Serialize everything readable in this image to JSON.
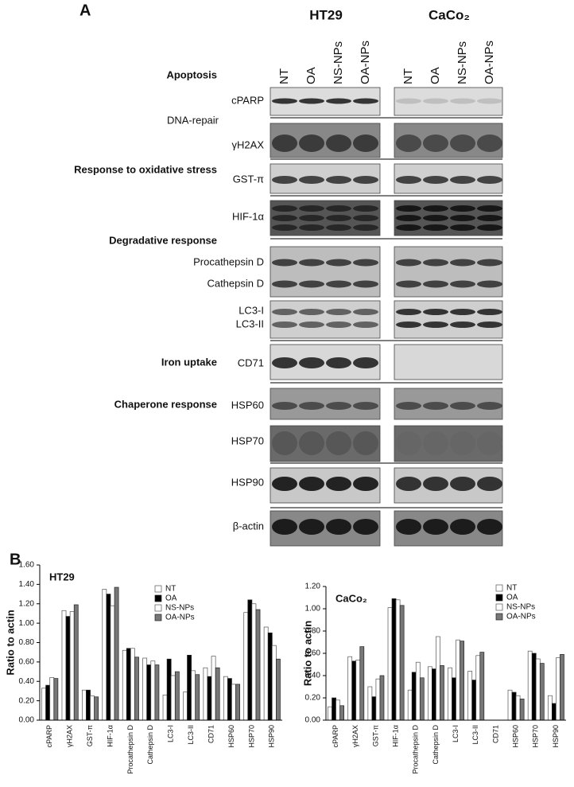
{
  "panel_a": {
    "label": "A",
    "cell_lines": [
      "HT29",
      "CaCo₂"
    ],
    "lanes": [
      "NT",
      "OA",
      "NS-NPs",
      "OA-NPs"
    ],
    "categories": [
      "Apoptosis",
      "DNA-repair",
      "Response to oxidative stress",
      "Degradative response",
      "Iron uptake",
      "Chaperone response"
    ],
    "blot_labels": [
      "cPARP",
      "γH2AX",
      "GST-π",
      "HIF-1α",
      "Procathepsin D",
      "Cathepsin D",
      "LC3-I",
      "LC3-II",
      "CD71",
      "HSP60",
      "HSP70",
      "HSP90",
      "β-actin"
    ]
  },
  "panel_b_label": "B",
  "chart_data": [
    {
      "type": "bar",
      "title": "HT29",
      "y_label": "Ratio to actin",
      "categories": [
        "cPARP",
        "γH2AX",
        "GST-π",
        "HIF-1α",
        "Procathepsin D",
        "Cathepsin D",
        "LC3-I",
        "LC3-II",
        "CD71",
        "HSP60",
        "HSP70",
        "HSP90"
      ],
      "series": [
        {
          "name": "NT",
          "color": "#ffffff",
          "values": [
            0.33,
            1.13,
            0.31,
            1.35,
            0.72,
            0.64,
            0.26,
            0.29,
            0.54,
            0.45,
            1.11,
            0.96
          ]
        },
        {
          "name": "OA",
          "color": "#000000",
          "values": [
            0.36,
            1.07,
            0.31,
            1.3,
            0.74,
            0.57,
            0.63,
            0.67,
            0.45,
            0.43,
            1.24,
            0.9
          ]
        },
        {
          "name": "NS-NPs",
          "color": "#ffffff",
          "values": [
            0.44,
            1.12,
            0.25,
            1.18,
            0.74,
            0.61,
            0.46,
            0.51,
            0.66,
            0.37,
            1.2,
            0.77
          ]
        },
        {
          "name": "OA-NPs",
          "color": "#777777",
          "values": [
            0.43,
            1.19,
            0.24,
            1.37,
            0.65,
            0.57,
            0.5,
            0.47,
            0.54,
            0.37,
            1.14,
            0.63
          ]
        }
      ],
      "ylim": [
        0,
        1.6
      ],
      "yticks": [
        {
          "value": 0,
          "label": "0.00"
        },
        {
          "value": 0.2,
          "label": "0.20"
        },
        {
          "value": 0.4,
          "label": "0.40"
        },
        {
          "value": 0.6,
          "label": "0.60"
        },
        {
          "value": 0.8,
          "label": "0.80"
        },
        {
          "value": 1.0,
          "label": "1.00"
        },
        {
          "value": 1.2,
          "label": "1.20"
        },
        {
          "value": 1.4,
          "label": "1.40"
        },
        {
          "value": 1.6,
          "label": "1.60"
        }
      ],
      "legend": "upper right"
    },
    {
      "type": "bar",
      "title": "CaCo₂",
      "y_label": "Ratio to actin",
      "categories": [
        "cPARP",
        "γH2AX",
        "GST-π",
        "HIF-1α",
        "Procathepsin D",
        "Cathepsin D",
        "LC3-I",
        "LC3-II",
        "CD71",
        "HSP60",
        "HSP70",
        "HSP90"
      ],
      "series": [
        {
          "name": "NT",
          "color": "#ffffff",
          "values": [
            0.12,
            0.57,
            0.3,
            1.01,
            0.27,
            0.48,
            0.47,
            0.44,
            0,
            0.27,
            0.62,
            0.22
          ]
        },
        {
          "name": "OA",
          "color": "#000000",
          "values": [
            0.2,
            0.53,
            0.21,
            1.09,
            0.43,
            0.46,
            0.38,
            0.36,
            0,
            0.25,
            0.6,
            0.15
          ]
        },
        {
          "name": "NS-NPs",
          "color": "#ffffff",
          "values": [
            0.18,
            0.54,
            0.37,
            1.08,
            0.52,
            0.75,
            0.72,
            0.58,
            0,
            0.22,
            0.55,
            0.56
          ]
        },
        {
          "name": "OA-NPs",
          "color": "#777777",
          "values": [
            0.13,
            0.66,
            0.4,
            1.03,
            0.38,
            0.49,
            0.71,
            0.61,
            0,
            0.19,
            0.51,
            0.59
          ]
        }
      ],
      "ylim": [
        0,
        1.2
      ],
      "yticks": [
        {
          "value": 0,
          "label": "0.00"
        },
        {
          "value": 0.2,
          "label": "0.20"
        },
        {
          "value": 0.4,
          "label": "0.40"
        },
        {
          "value": 0.6,
          "label": "0.60"
        },
        {
          "value": 0.8,
          "label": "0.80"
        },
        {
          "value": 1.0,
          "label": "1.00"
        },
        {
          "value": 1.2,
          "label": "1.20"
        }
      ],
      "legend": "upper right"
    }
  ]
}
